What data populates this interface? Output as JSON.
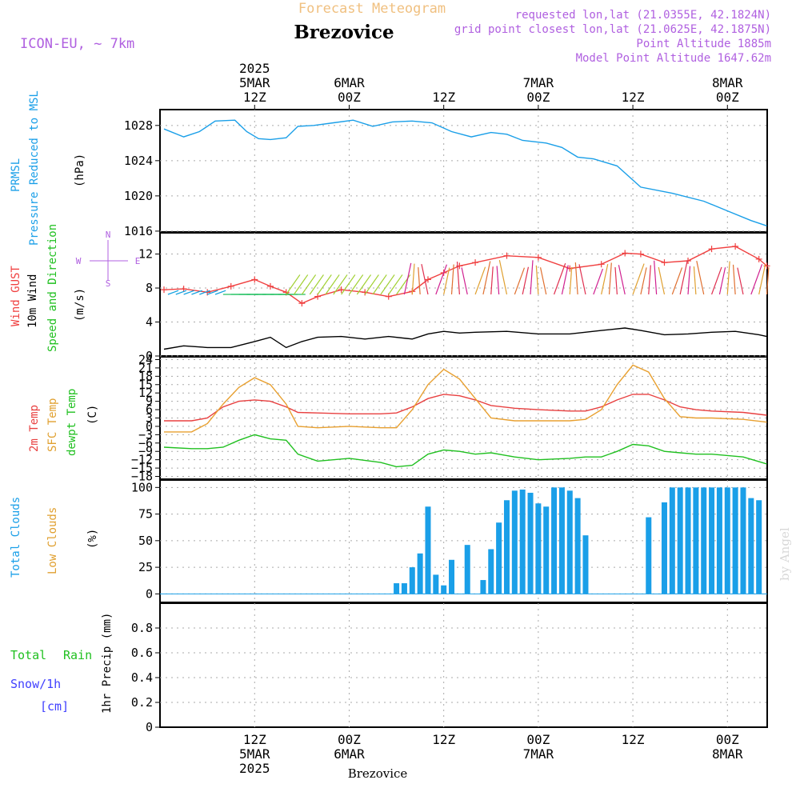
{
  "header": {
    "top_title": "Forecast Meteogram",
    "station": "Brezovice",
    "model": "ICON-EU, ~ 7km",
    "info": [
      "requested lon,lat (21.0355E, 42.1824N)",
      "grid point closest lon,lat (21.0625E, 42.1875N)",
      "Point Altitude 1885m",
      "Model Point Altitude 1647.62m"
    ],
    "footer_station": "Brezovice",
    "watermark": "by Angel"
  },
  "colors": {
    "pressure": "#1a9fe8",
    "gust": "#f04040",
    "wind": "#000000",
    "temp2m": "#e84040",
    "sfc": "#e8a030",
    "dewpt": "#20c020",
    "clouds": "#1a9fe8",
    "lowclouds": "#e0a030",
    "rain": "#20c020",
    "snow": "#4040ff",
    "info": "#b060e0",
    "toptitle": "#f0c080"
  },
  "time_axis": {
    "top": [
      {
        "lines": [
          "2025",
          "5MAR",
          "12Z"
        ],
        "hour": 12
      },
      {
        "lines": [
          "6MAR",
          "00Z"
        ],
        "hour": 24
      },
      {
        "lines": [
          "12Z"
        ],
        "hour": 36
      },
      {
        "lines": [
          "7MAR",
          "00Z"
        ],
        "hour": 48
      },
      {
        "lines": [
          "12Z"
        ],
        "hour": 60
      },
      {
        "lines": [
          "8MAR",
          "00Z"
        ],
        "hour": 72
      }
    ],
    "bottom": [
      {
        "lines": [
          "12Z",
          "5MAR",
          "2025"
        ],
        "hour": 12
      },
      {
        "lines": [
          "00Z",
          "6MAR"
        ],
        "hour": 24
      },
      {
        "lines": [
          "12Z"
        ],
        "hour": 36
      },
      {
        "lines": [
          "00Z",
          "7MAR"
        ],
        "hour": 48
      },
      {
        "lines": [
          "12Z"
        ],
        "hour": 60
      },
      {
        "lines": [
          "00Z",
          "8MAR"
        ],
        "hour": 72
      }
    ]
  },
  "chart_data": [
    {
      "type": "line",
      "panel": "pressure",
      "labels": {
        "left1": "PRMSL",
        "left2": "Pressure Reduced to MSL",
        "unit": "(hPa)"
      },
      "ylim": [
        1015.9,
        1029.8
      ],
      "yticks": [
        1016,
        1020,
        1024,
        1028
      ],
      "x_hours": [
        0.5,
        3,
        5,
        7,
        9.5,
        11,
        12.5,
        14,
        16,
        17.5,
        19.5,
        22,
        24.5,
        27,
        29.5,
        32,
        34.5,
        37,
        39.5,
        42,
        44,
        46,
        49,
        51,
        53,
        55,
        58,
        61,
        65,
        69,
        72,
        75,
        77
      ],
      "series": [
        {
          "name": "PRMSL",
          "values": [
            1027.6,
            1026.7,
            1027.3,
            1028.5,
            1028.6,
            1027.3,
            1026.5,
            1026.4,
            1026.6,
            1027.9,
            1028.0,
            1028.3,
            1028.6,
            1027.9,
            1028.4,
            1028.5,
            1028.3,
            1027.3,
            1026.7,
            1027.2,
            1027.0,
            1026.3,
            1026.0,
            1025.5,
            1024.4,
            1024.2,
            1023.4,
            1021.0,
            1020.3,
            1019.4,
            1018.3,
            1017.2,
            1016.6
          ]
        }
      ]
    },
    {
      "type": "line",
      "panel": "wind",
      "labels": {
        "gust": "Wind GUST",
        "wind": "10m Wind",
        "dir": "Speed and Direction",
        "unit": "(m/s)",
        "compass_n": "N",
        "compass_s": "S",
        "compass_w": "W",
        "compass_e": "E"
      },
      "ylim": [
        0,
        14.5
      ],
      "yticks": [
        0,
        4,
        8,
        12
      ],
      "x_hours": [
        0.5,
        3,
        6,
        9,
        12,
        14,
        16,
        18,
        20,
        23,
        26,
        29,
        32,
        34,
        36,
        38,
        40,
        44,
        48,
        52,
        56,
        59,
        61,
        64,
        67,
        70,
        73,
        76,
        77
      ],
      "series": [
        {
          "name": "Wind GUST",
          "values": [
            7.8,
            7.9,
            7.5,
            8.2,
            9.0,
            8.2,
            7.5,
            6.2,
            7.0,
            7.8,
            7.5,
            7.0,
            7.6,
            9.0,
            9.8,
            10.6,
            11.0,
            11.8,
            11.6,
            10.3,
            10.8,
            12.1,
            12.0,
            11.0,
            11.2,
            12.6,
            12.9,
            11.4,
            10.6
          ]
        },
        {
          "name": "10m Wind",
          "values": [
            0.8,
            1.2,
            1.0,
            1.0,
            1.7,
            2.2,
            1.0,
            1.7,
            2.2,
            2.3,
            2.0,
            2.3,
            2.0,
            2.6,
            2.9,
            2.7,
            2.8,
            2.9,
            2.6,
            2.6,
            3.0,
            3.3,
            3.0,
            2.5,
            2.6,
            2.8,
            2.9,
            2.5,
            2.3
          ]
        }
      ]
    },
    {
      "type": "line",
      "panel": "temperature",
      "labels": {
        "t2m": "2m Temp",
        "sfc": "SFC Temp",
        "dew": "dewpt Temp",
        "unit": "(C)"
      },
      "ylim": [
        -19,
        25
      ],
      "yticks": [
        -18,
        -15,
        -12,
        -9,
        -6,
        -3,
        0,
        3,
        6,
        9,
        12,
        15,
        18,
        21,
        24
      ],
      "x_hours": [
        0.5,
        4,
        6,
        8,
        10,
        12,
        14,
        16,
        17.5,
        20,
        24,
        28,
        30,
        32,
        34,
        36,
        38,
        40,
        42,
        45,
        48,
        52,
        54,
        56,
        58,
        60,
        62,
        64,
        66,
        68,
        70,
        74,
        77
      ],
      "series": [
        {
          "name": "2m Temp",
          "values": [
            2,
            2,
            3,
            7,
            9,
            9.5,
            9,
            7,
            5,
            4.8,
            4.5,
            4.5,
            4.8,
            7,
            10,
            11.5,
            11,
            9.5,
            7.5,
            6.5,
            6,
            5.5,
            5.5,
            7,
            9.5,
            11.5,
            11.5,
            9.5,
            7,
            6,
            5.5,
            5,
            4
          ]
        },
        {
          "name": "SFC Temp",
          "values": [
            -2,
            -2,
            1,
            8,
            14,
            17.5,
            15,
            8,
            0,
            -0.5,
            0,
            -0.5,
            -0.5,
            6,
            15,
            20.5,
            17,
            10,
            3,
            2,
            2,
            2,
            2.5,
            6,
            15,
            22,
            19.5,
            10,
            3.5,
            3,
            3,
            2.5,
            1.5
          ]
        },
        {
          "name": "dewpt Temp",
          "values": [
            -7.5,
            -8,
            -8,
            -7.5,
            -5,
            -3,
            -4.5,
            -5,
            -10,
            -12.5,
            -11.5,
            -13,
            -14.5,
            -14,
            -10,
            -8.5,
            -9,
            -10,
            -9.5,
            -11,
            -12,
            -11.5,
            -11,
            -11,
            -9,
            -6.5,
            -7,
            -9,
            -9.5,
            -10,
            -10,
            -11,
            -13.5
          ]
        }
      ]
    },
    {
      "type": "bar",
      "panel": "clouds",
      "labels": {
        "total": "Total Clouds",
        "low": "Low Clouds",
        "unit": "(%)"
      },
      "ylim": [
        -8,
        107
      ],
      "yticks": [
        0,
        25,
        50,
        75,
        100
      ],
      "x_hours": [
        30,
        31,
        32,
        33,
        34,
        35,
        36,
        37,
        38,
        39,
        40,
        41,
        42,
        43,
        44,
        45,
        46,
        47,
        48,
        49,
        50,
        51,
        52,
        53,
        54,
        55,
        56,
        57,
        58,
        59,
        60,
        61,
        62,
        63,
        64,
        65,
        66,
        67,
        68,
        69,
        70,
        71,
        72,
        73,
        74,
        75,
        76
      ],
      "values": [
        10,
        10,
        25,
        38,
        82,
        18,
        8,
        32,
        0,
        46,
        0,
        13,
        42,
        67,
        88,
        97,
        98,
        95,
        85,
        82,
        100,
        100,
        97,
        90,
        55,
        0,
        0,
        0,
        0,
        0,
        0,
        0,
        72,
        0,
        86,
        100,
        100,
        100,
        100,
        100,
        100,
        100,
        100,
        100,
        100,
        90,
        88
      ]
    },
    {
      "type": "bar",
      "panel": "precip",
      "labels": {
        "rain_total": "Total",
        "rain": "Rain",
        "snow": "Snow/1h",
        "snow_unit": "[cm]",
        "axis": "1hr Precip (mm)"
      },
      "ylim": [
        0,
        1.0
      ],
      "yticks": [
        0,
        0.2,
        0.4,
        0.6,
        0.8
      ],
      "values": []
    }
  ]
}
